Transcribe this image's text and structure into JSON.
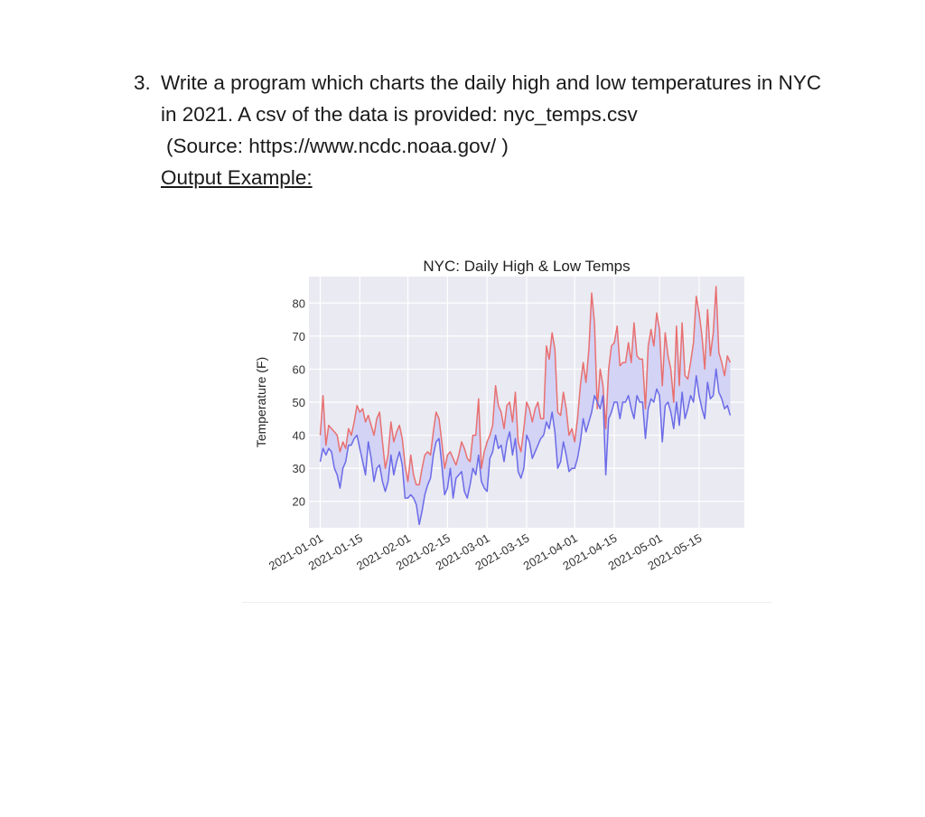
{
  "question": {
    "number": "3.",
    "line1": "Write a  program which charts the daily high and low temperatures in NYC",
    "line2": "in 2021. A csv of the data is provided: nyc_temps.csv",
    "source": "(Source: https://www.ncdc.noaa.gov/ )",
    "output_label": "Output Example:"
  },
  "chart_data": {
    "type": "line",
    "title": "NYC: Daily High & Low Temps",
    "xlabel": "",
    "ylabel": "Temperature (F)",
    "ylim": [
      12,
      88
    ],
    "yticks": [
      20,
      30,
      40,
      50,
      60,
      70,
      80
    ],
    "xlim": [
      "2020-12-28",
      "2021-05-31"
    ],
    "xticks": [
      "2021-01-01",
      "2021-01-15",
      "2021-02-01",
      "2021-02-15",
      "2021-03-01",
      "2021-03-15",
      "2021-04-01",
      "2021-04-15",
      "2021-05-01",
      "2021-05-15"
    ],
    "grid": true,
    "fill_between": true,
    "colors": {
      "high": "#e87070",
      "low": "#6b6be8",
      "fill": "#d2d3f5",
      "background": "#eaeaf2"
    },
    "x": [
      "2021-01-01",
      "2021-01-02",
      "2021-01-03",
      "2021-01-04",
      "2021-01-05",
      "2021-01-06",
      "2021-01-07",
      "2021-01-08",
      "2021-01-09",
      "2021-01-10",
      "2021-01-11",
      "2021-01-12",
      "2021-01-13",
      "2021-01-14",
      "2021-01-15",
      "2021-01-16",
      "2021-01-17",
      "2021-01-18",
      "2021-01-19",
      "2021-01-20",
      "2021-01-21",
      "2021-01-22",
      "2021-01-23",
      "2021-01-24",
      "2021-01-25",
      "2021-01-26",
      "2021-01-27",
      "2021-01-28",
      "2021-01-29",
      "2021-01-30",
      "2021-01-31",
      "2021-02-01",
      "2021-02-02",
      "2021-02-03",
      "2021-02-04",
      "2021-02-05",
      "2021-02-06",
      "2021-02-07",
      "2021-02-08",
      "2021-02-09",
      "2021-02-10",
      "2021-02-11",
      "2021-02-12",
      "2021-02-13",
      "2021-02-14",
      "2021-02-15",
      "2021-02-16",
      "2021-02-17",
      "2021-02-18",
      "2021-02-19",
      "2021-02-20",
      "2021-02-21",
      "2021-02-22",
      "2021-02-23",
      "2021-02-24",
      "2021-02-25",
      "2021-02-26",
      "2021-02-27",
      "2021-02-28",
      "2021-03-01",
      "2021-03-02",
      "2021-03-03",
      "2021-03-04",
      "2021-03-05",
      "2021-03-06",
      "2021-03-07",
      "2021-03-08",
      "2021-03-09",
      "2021-03-10",
      "2021-03-11",
      "2021-03-12",
      "2021-03-13",
      "2021-03-14",
      "2021-03-15",
      "2021-03-16",
      "2021-03-17",
      "2021-03-18",
      "2021-03-19",
      "2021-03-20",
      "2021-03-21",
      "2021-03-22",
      "2021-03-23",
      "2021-03-24",
      "2021-03-25",
      "2021-03-26",
      "2021-03-27",
      "2021-03-28",
      "2021-03-29",
      "2021-03-30",
      "2021-03-31",
      "2021-04-01",
      "2021-04-02",
      "2021-04-03",
      "2021-04-04",
      "2021-04-05",
      "2021-04-06",
      "2021-04-07",
      "2021-04-08",
      "2021-04-09",
      "2021-04-10",
      "2021-04-11",
      "2021-04-12",
      "2021-04-13",
      "2021-04-14",
      "2021-04-15",
      "2021-04-16",
      "2021-04-17",
      "2021-04-18",
      "2021-04-19",
      "2021-04-20",
      "2021-04-21",
      "2021-04-22",
      "2021-04-23",
      "2021-04-24",
      "2021-04-25",
      "2021-04-26",
      "2021-04-27",
      "2021-04-28",
      "2021-04-29",
      "2021-04-30",
      "2021-05-01",
      "2021-05-02",
      "2021-05-03",
      "2021-05-04",
      "2021-05-05",
      "2021-05-06",
      "2021-05-07",
      "2021-05-08",
      "2021-05-09",
      "2021-05-10",
      "2021-05-11",
      "2021-05-12",
      "2021-05-13",
      "2021-05-14",
      "2021-05-15",
      "2021-05-16",
      "2021-05-17",
      "2021-05-18",
      "2021-05-19",
      "2021-05-20",
      "2021-05-21",
      "2021-05-22",
      "2021-05-23",
      "2021-05-24",
      "2021-05-25",
      "2021-05-26"
    ],
    "series": [
      {
        "name": "high",
        "values": [
          40,
          52,
          37,
          43,
          42,
          41,
          40,
          35,
          38,
          36,
          42,
          40,
          44,
          49,
          47,
          48,
          44,
          46,
          43,
          40,
          45,
          47,
          38,
          30,
          34,
          44,
          38,
          41,
          43,
          39,
          31,
          26,
          34,
          28,
          25,
          25,
          30,
          34,
          35,
          34,
          41,
          47,
          45,
          38,
          30,
          34,
          35,
          33,
          31,
          34,
          38,
          36,
          33,
          32,
          40,
          40,
          51,
          30,
          35,
          38,
          40,
          43,
          55,
          49,
          47,
          42,
          49,
          50,
          44,
          53,
          38,
          35,
          42,
          50,
          48,
          44,
          48,
          50,
          45,
          45,
          67,
          63,
          71,
          66,
          47,
          46,
          53,
          48,
          40,
          42,
          38,
          45,
          55,
          62,
          56,
          66,
          83,
          74,
          48,
          60,
          55,
          42,
          60,
          67,
          68,
          73,
          61,
          62,
          62,
          68,
          62,
          74,
          64,
          63,
          63,
          48,
          67,
          72,
          67,
          77,
          72,
          55,
          71,
          64,
          60,
          50,
          73,
          55,
          74,
          58,
          57,
          62,
          68,
          82,
          77,
          70,
          60,
          78,
          64,
          71,
          85,
          65,
          62,
          58,
          64,
          62
        ]
      },
      {
        "name": "low",
        "values": [
          32,
          36,
          34,
          36,
          35,
          30,
          28,
          24,
          30,
          32,
          37,
          37,
          39,
          40,
          36,
          32,
          28,
          38,
          33,
          26,
          30,
          31,
          26,
          23,
          26,
          34,
          28,
          32,
          35,
          31,
          21,
          21,
          22,
          21,
          19,
          13,
          17,
          22,
          25,
          27,
          34,
          38,
          39,
          31,
          22,
          24,
          30,
          21,
          27,
          28,
          29,
          23,
          21,
          25,
          30,
          28,
          34,
          26,
          24,
          23,
          33,
          35,
          40,
          36,
          37,
          32,
          38,
          41,
          34,
          39,
          29,
          27,
          30,
          40,
          38,
          33,
          35,
          37,
          39,
          40,
          44,
          42,
          47,
          41,
          30,
          32,
          38,
          34,
          29,
          30,
          30,
          33,
          38,
          45,
          41,
          44,
          47,
          52,
          50,
          48,
          52,
          28,
          45,
          47,
          50,
          50,
          45,
          50,
          50,
          52,
          48,
          45,
          52,
          50,
          50,
          39,
          48,
          51,
          50,
          54,
          52,
          38,
          49,
          50,
          47,
          42,
          50,
          43,
          53,
          45,
          48,
          52,
          50,
          58,
          52,
          48,
          45,
          56,
          51,
          52,
          60,
          53,
          51,
          48,
          49,
          46
        ]
      }
    ]
  }
}
